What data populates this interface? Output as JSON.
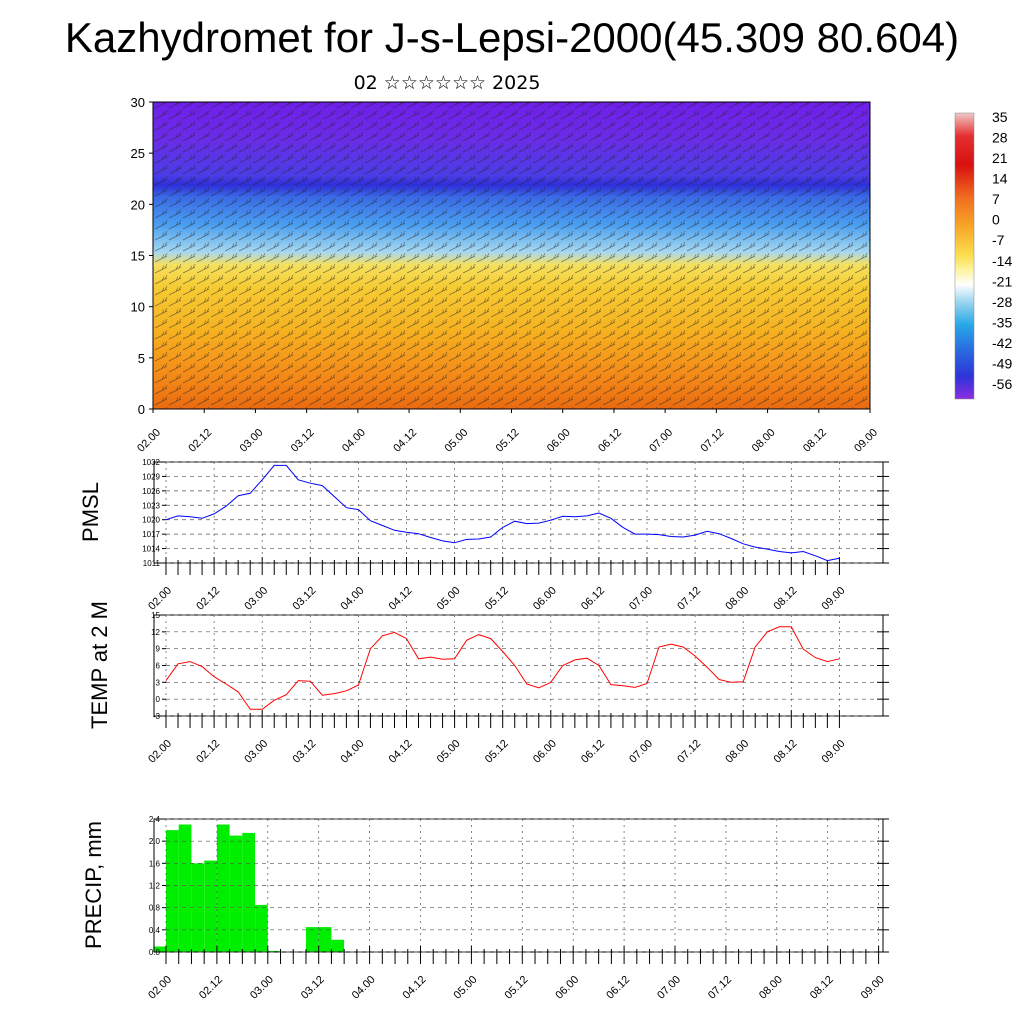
{
  "header": {
    "title": "Kazhydromet for J-s-Lepsi-2000(45.309 80.604)",
    "subtitle": "02 ☆☆☆☆☆☆ 2025"
  },
  "colors": {
    "pmsl_line": "#0000ff",
    "temp_line": "#ff0000",
    "precip_bar": "#00ee00",
    "grid": "#555555"
  },
  "chart_data": [
    {
      "type": "heatmap",
      "name": "cross-section",
      "x_tick_labels": [
        "02.00",
        "02.12",
        "03.00",
        "03.12",
        "04.00",
        "04.12",
        "05.00",
        "05.12",
        "06.00",
        "06.12",
        "07.00",
        "07.12",
        "08.00",
        "08.12",
        "09.00"
      ],
      "y_tick_labels": [
        "0",
        "5",
        "10",
        "15",
        "20",
        "25",
        "30"
      ],
      "ylim": [
        0,
        30
      ],
      "colorbar": {
        "labels": [
          "35",
          "28",
          "21",
          "14",
          "7",
          "0",
          "-7",
          "-14",
          "-21",
          "-28",
          "-35",
          "-42",
          "-49",
          "-56"
        ],
        "range": [
          -60,
          38
        ]
      },
      "overlay": "wind barbs"
    },
    {
      "type": "line",
      "name": "pmsl",
      "ylabel": "PMSL",
      "ylim": [
        1011,
        1032
      ],
      "y_tick_labels": [
        "1032",
        "1029",
        "1026",
        "1023",
        "1020",
        "1017",
        "1014",
        "1011"
      ],
      "x_tick_labels": [
        "02.00",
        "02.12",
        "03.00",
        "03.12",
        "04.00",
        "04.12",
        "05.00",
        "05.12",
        "06.00",
        "06.12",
        "07.00",
        "07.12",
        "08.00",
        "08.12",
        "09.00"
      ],
      "x_hours": [
        0,
        3,
        6,
        9,
        12,
        15,
        18,
        21,
        24,
        27,
        30,
        33,
        36,
        39,
        42,
        45,
        48,
        51,
        54,
        57,
        60,
        63,
        66,
        69,
        72,
        75,
        78,
        81,
        84,
        87,
        90,
        93,
        96,
        99,
        102,
        105,
        108,
        111,
        114,
        117,
        120,
        123,
        126,
        129,
        132,
        135,
        138,
        141,
        144,
        147,
        150,
        153,
        156,
        159,
        162,
        165,
        168
      ],
      "values": [
        1020,
        1020.8,
        1020.6,
        1020.3,
        1021.2,
        1022.8,
        1025,
        1025.5,
        1028.3,
        1031.3,
        1031.3,
        1028.3,
        1027.6,
        1027.1,
        1024.8,
        1022.5,
        1022.1,
        1019.8,
        1018.8,
        1017.8,
        1017.4,
        1017.1,
        1016.3,
        1015.6,
        1015.2,
        1015.9,
        1016,
        1016.4,
        1018.4,
        1019.7,
        1019.2,
        1019.3,
        1019.9,
        1020.7,
        1020.6,
        1020.8,
        1021.4,
        1020.3,
        1018.4,
        1017,
        1017,
        1016.9,
        1016.5,
        1016.4,
        1016.8,
        1017.6,
        1017.1,
        1016.1,
        1015,
        1014.3,
        1013.9,
        1013.4,
        1013.1,
        1013.4,
        1012.5,
        1011.5,
        1012
      ]
    },
    {
      "type": "line",
      "name": "temp",
      "ylabel": "TEMP at 2 M",
      "ylim": [
        -3,
        15
      ],
      "y_tick_labels": [
        "15",
        "12",
        "9",
        "6",
        "3",
        "0",
        "-3"
      ],
      "x_tick_labels": [
        "02.00",
        "02.12",
        "03.00",
        "03.12",
        "04.00",
        "04.12",
        "05.00",
        "05.12",
        "06.00",
        "06.12",
        "07.00",
        "07.12",
        "08.00",
        "08.12",
        "09.00"
      ],
      "x_hours": [
        0,
        3,
        6,
        9,
        12,
        15,
        18,
        21,
        24,
        27,
        30,
        33,
        36,
        39,
        42,
        45,
        48,
        51,
        54,
        57,
        60,
        63,
        66,
        69,
        72,
        75,
        78,
        81,
        84,
        87,
        90,
        93,
        96,
        99,
        102,
        105,
        108,
        111,
        114,
        117,
        120,
        123,
        126,
        129,
        132,
        135,
        138,
        141,
        144,
        147,
        150,
        153,
        156,
        159,
        162,
        165,
        168
      ],
      "values": [
        3.3,
        6.3,
        6.7,
        5.8,
        4,
        2.7,
        1.3,
        -1.8,
        -1.8,
        -0.2,
        0.8,
        3.3,
        3.2,
        0.7,
        1,
        1.5,
        2.5,
        9,
        11.3,
        11.9,
        10.8,
        7.2,
        7.5,
        7.1,
        7.2,
        10.5,
        11.5,
        10.8,
        8.5,
        6,
        2.7,
        2,
        3,
        6,
        7,
        7.3,
        6,
        2.6,
        2.4,
        2.1,
        2.8,
        9.3,
        9.8,
        9.3,
        7.7,
        5.7,
        3.5,
        3,
        3.1,
        9.3,
        12,
        12.9,
        12.9,
        8.9,
        7.4,
        6.7,
        7.2
      ]
    },
    {
      "type": "bar",
      "name": "precip",
      "ylabel": "PRECIP, mm",
      "ylim": [
        0,
        2.4
      ],
      "y_tick_labels": [
        "2.4",
        "2.0",
        "1.6",
        "1.2",
        "0.8",
        "0.4",
        "0.0"
      ],
      "x_tick_labels": [
        "02.00",
        "02.12",
        "03.00",
        "03.12",
        "04.00",
        "04.12",
        "05.00",
        "05.12",
        "06.00",
        "06.12",
        "07.00",
        "07.12",
        "08.00",
        "08.12",
        "09.00"
      ],
      "bar_start_hours": [
        -3,
        0,
        3,
        6,
        9,
        12,
        15,
        18,
        21,
        24,
        33,
        36,
        39,
        40
      ],
      "values": [
        0.1,
        2.2,
        2.3,
        1.6,
        1.65,
        2.3,
        2.1,
        2.15,
        0.85,
        0.02,
        0.45,
        0.45,
        0.22,
        0
      ]
    }
  ]
}
